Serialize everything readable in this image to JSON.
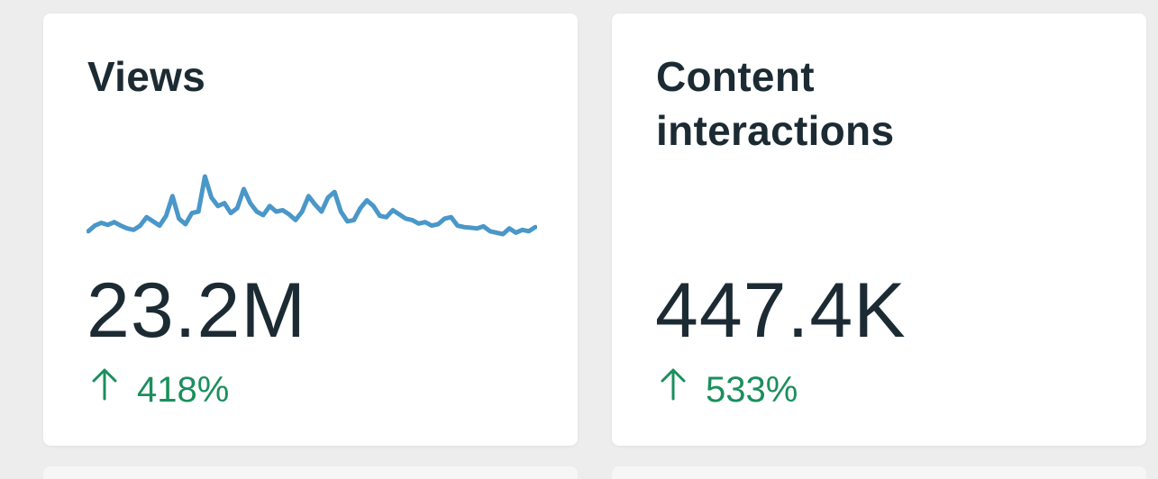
{
  "cards": [
    {
      "title": "Views",
      "value": "23.2M",
      "change": "418%",
      "change_direction": "up",
      "arrow_icon": "arrow-up-icon",
      "change_color": "#1a8f5c",
      "sparkline_color": "#4a97c9",
      "sparkline": [
        0.22,
        0.3,
        0.34,
        0.31,
        0.35,
        0.3,
        0.26,
        0.24,
        0.3,
        0.42,
        0.36,
        0.3,
        0.44,
        0.72,
        0.4,
        0.32,
        0.48,
        0.5,
        1.0,
        0.7,
        0.58,
        0.62,
        0.48,
        0.55,
        0.82,
        0.62,
        0.5,
        0.45,
        0.58,
        0.5,
        0.52,
        0.46,
        0.38,
        0.5,
        0.72,
        0.6,
        0.5,
        0.7,
        0.78,
        0.5,
        0.36,
        0.38,
        0.55,
        0.66,
        0.58,
        0.44,
        0.42,
        0.52,
        0.46,
        0.4,
        0.38,
        0.33,
        0.35,
        0.3,
        0.32,
        0.4,
        0.42,
        0.3,
        0.28,
        0.27,
        0.26,
        0.29,
        0.22,
        0.2,
        0.18,
        0.26,
        0.2,
        0.24,
        0.22,
        0.28
      ]
    },
    {
      "title": "Content interactions",
      "value": "447.4K",
      "change": "533%",
      "change_direction": "up",
      "arrow_icon": "arrow-up-icon",
      "change_color": "#1a8f5c"
    }
  ]
}
